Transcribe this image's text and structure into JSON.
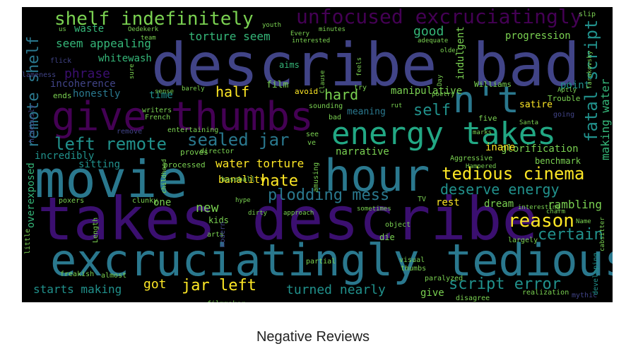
{
  "caption": "Negative Reviews",
  "palette": {
    "background": "#000000",
    "purple": "#440154",
    "dark_purple": "#3b0f70",
    "indigo": "#414487",
    "blue": "#2a788e",
    "teal": "#21918c",
    "green": "#22a884",
    "lightgreen": "#35b779",
    "lime": "#7ad151",
    "yellow": "#fde725"
  },
  "words": [
    "describe bad",
    "takes describe",
    "movie",
    "excruciatingly tedious",
    "give thumbs",
    "hour",
    "energy takes",
    "n't",
    "unfocused excruciatingly",
    "shelf indefinitely",
    "tedious cinema",
    "remote shelf",
    "fatal script",
    "sealed jar",
    "left remote",
    "deserve energy",
    "reason",
    "plodding mess",
    "script error",
    "jar left",
    "making water",
    "half",
    "hate",
    "water torture",
    "self",
    "certain",
    "good",
    "torture seem",
    "seem appealing",
    "phrase",
    "turned nearly",
    "starts making",
    "progression",
    "hard",
    "whitewash",
    "rambling",
    "manipulative",
    "incoherence",
    "honestly",
    "overexposed",
    "waste",
    "time",
    "narrative",
    "glorification",
    "incredibly",
    "sitting",
    "got",
    "banality",
    "new",
    "dream",
    "rest",
    "meaning",
    "indulgent",
    "point",
    "inane",
    "film",
    "avoid",
    "aims",
    "ends",
    "lameness",
    "flick",
    "hideously",
    "benchmark",
    "satire",
    "five",
    "going",
    "Trouble",
    "Williams",
    "proves",
    "director",
    "processed",
    "baseball",
    "amusing",
    "TV",
    "entertaining",
    "writers",
    "French",
    "remove",
    "little",
    "poxers",
    "clunky",
    "one",
    "kids",
    "arts",
    "modern",
    "Length",
    "freakish",
    "almost",
    "filmmaker",
    "partial",
    "visual",
    "thumbs",
    "paralyzed",
    "give",
    "disagree",
    "realization",
    "mythic",
    "developing",
    "Tarakovsky",
    "slip",
    "us",
    "Oedekerk",
    "team",
    "youth",
    "Every",
    "minutes",
    "adequate",
    "older",
    "interested",
    "feels",
    "try",
    "Clause",
    "Day",
    "poetry",
    "sense",
    "barely",
    "sure",
    "childhood",
    "rut",
    "sounding",
    "bad",
    "see",
    "ve",
    "Santa",
    "marks",
    "Aggressive",
    "Hampered",
    "interesting",
    "charm",
    "Name",
    "cabsitter",
    "largely",
    "object",
    "die",
    "sometimes",
    "approach",
    "hype",
    "dirty",
    "Aptly"
  ]
}
